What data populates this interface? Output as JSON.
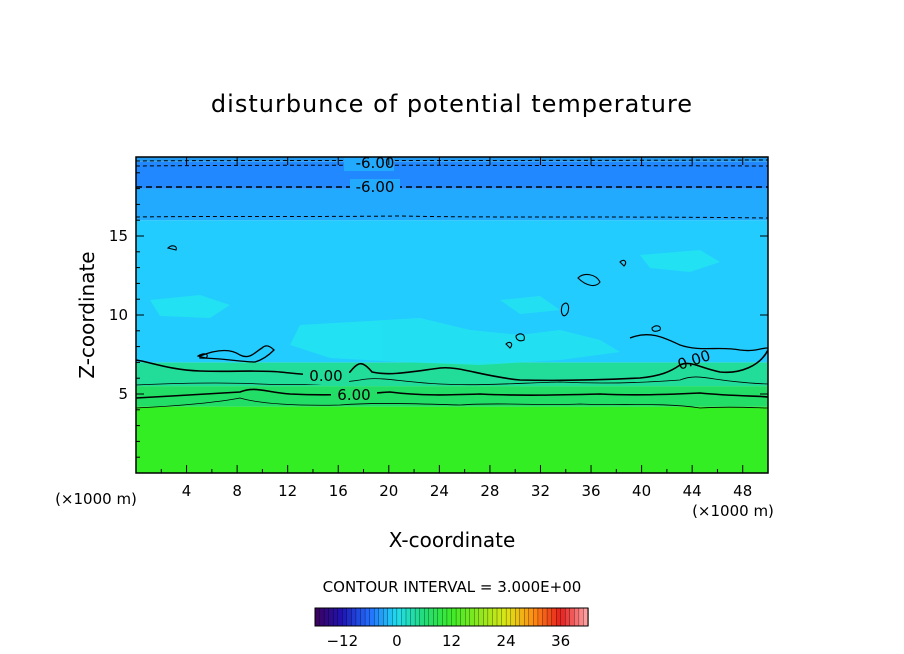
{
  "chart_data": {
    "type": "heatmap",
    "title": "disturbunce of potential temperature",
    "xlabel": "X-coordinate",
    "ylabel": "Z-coordinate",
    "x_unit": "(×1000 m)",
    "z_unit": "(×1000 m)",
    "xlim": [
      0,
      50
    ],
    "ylim": [
      0,
      20
    ],
    "x_ticks": [
      "4",
      "8",
      "12",
      "16",
      "20",
      "24",
      "28",
      "32",
      "36",
      "40",
      "44",
      "48"
    ],
    "y_ticks": [
      "5",
      "10",
      "15"
    ],
    "contour_interval_label": "CONTOUR INTERVAL = 3.000E+00",
    "contour_interval": 3.0,
    "contour_labels": [
      "-6.00",
      "-6.00",
      "0.00",
      "6.00",
      "0.00"
    ],
    "colorbar": {
      "min": -18,
      "max": 42,
      "tick_labels": [
        "−12",
        "0",
        "12",
        "24",
        "36"
      ],
      "tick_values": [
        -12,
        0,
        12,
        24,
        36
      ]
    },
    "field_bands": [
      {
        "z_range": [
          0,
          4.2
        ],
        "value_approx": 12
      },
      {
        "z_range": [
          4.2,
          5.5
        ],
        "value_approx": 6
      },
      {
        "z_range": [
          5.5,
          7.0
        ],
        "value_approx": 3
      },
      {
        "z_range": [
          7.0,
          16.0
        ],
        "value_approx": 0
      },
      {
        "z_range": [
          16.0,
          18.0
        ],
        "value_approx": -3
      },
      {
        "z_range": [
          18.0,
          19.7
        ],
        "value_approx": -6
      }
    ],
    "colors": {
      "green": "#33ee22",
      "green_mid": "#22dd66",
      "teal": "#22ddaa",
      "cyan": "#22e0ee",
      "light_blue": "#22ccff",
      "blue": "#22aaff",
      "deep_blue": "#2288ff"
    }
  }
}
